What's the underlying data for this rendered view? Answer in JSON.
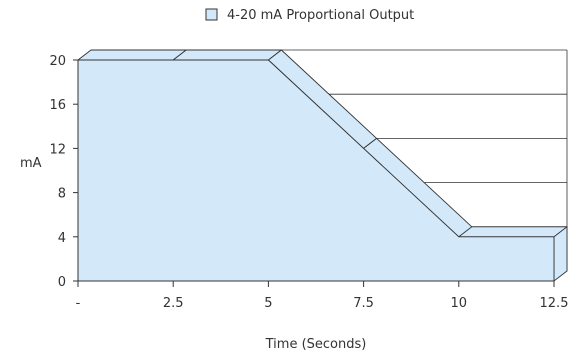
{
  "chart_data": {
    "type": "area",
    "title": "",
    "legend": {
      "position": "top-center",
      "entries": [
        "4-20 mA Proportional Output"
      ]
    },
    "xlabel": "Time (Seconds)",
    "ylabel": "mA",
    "x_ticks": [
      0,
      2.5,
      5,
      7.5,
      10,
      12.5
    ],
    "x_tick_labels": [
      "-",
      "2.5",
      "5",
      "7.5",
      "10",
      "12.5"
    ],
    "y_ticks": [
      0,
      4,
      8,
      12,
      16,
      20
    ],
    "y_tick_labels": [
      "0",
      "4",
      "8",
      "12",
      "16",
      "20"
    ],
    "xlim": [
      0,
      12.5
    ],
    "ylim": [
      0,
      20
    ],
    "grid": true,
    "three_d": true,
    "series": [
      {
        "name": "4-20 mA Proportional Output",
        "color": "#d3e9fa",
        "edge_color": "#333333",
        "x": [
          0,
          2.5,
          5,
          7.5,
          10,
          12.5
        ],
        "values": [
          20,
          20,
          20,
          12,
          4,
          4
        ]
      }
    ]
  }
}
